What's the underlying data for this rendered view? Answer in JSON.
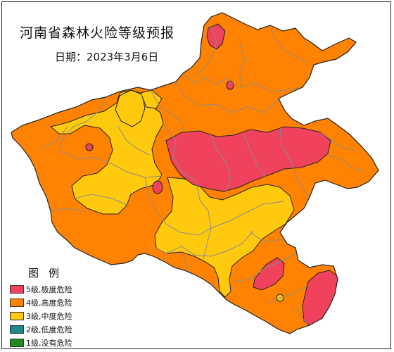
{
  "map": {
    "title": "河南省森林火险等级预报",
    "date_label": "日期：2023年3月6日"
  },
  "legend": {
    "title": "图例",
    "items": [
      {
        "label": "5级,极度危险",
        "color": "#f0425c"
      },
      {
        "label": "4级,高度危险",
        "color": "#ff8200"
      },
      {
        "label": "3级,中度危险",
        "color": "#ffc90e"
      },
      {
        "label": "2级,低度危险",
        "color": "#1a8a8a"
      },
      {
        "label": "1级,没有危险",
        "color": "#1f8a1f"
      }
    ]
  },
  "colors": {
    "level5": "#f0425c",
    "level4": "#ff8200",
    "level3": "#ffc90e",
    "boundary": "#8c8c8c",
    "outline": "#222222"
  }
}
